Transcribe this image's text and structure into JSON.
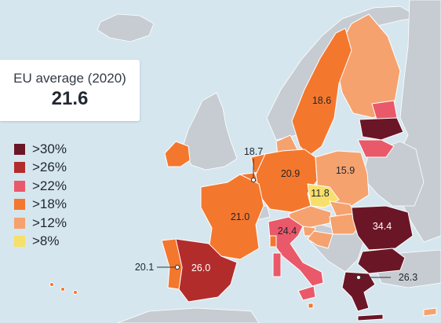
{
  "summary": {
    "label": "EU average (2020)",
    "value": "21.6"
  },
  "legend": [
    {
      "label": ">30%",
      "color": "#6b1626"
    },
    {
      "label": ">26%",
      "color": "#b32c2c"
    },
    {
      "label": ">22%",
      "color": "#e9596a"
    },
    {
      "label": ">18%",
      "color": "#f4772e"
    },
    {
      "label": ">12%",
      "color": "#f5a26f"
    },
    {
      "label": ">8%",
      "color": "#f7df6b"
    }
  ],
  "chart_data": {
    "type": "choropleth",
    "units": "%",
    "regions": [
      {
        "region": "Sweden",
        "value": 18.6
      },
      {
        "region": "Belgium",
        "value": 18.7
      },
      {
        "region": "Germany",
        "value": 20.9
      },
      {
        "region": "Poland",
        "value": 15.9
      },
      {
        "region": "Czechia",
        "value": 11.8
      },
      {
        "region": "France",
        "value": 21.0
      },
      {
        "region": "Italy",
        "value": 24.4
      },
      {
        "region": "Romania",
        "value": 34.4
      },
      {
        "region": "Portugal",
        "value": 20.1
      },
      {
        "region": "Spain",
        "value": 26.0
      },
      {
        "region": "Greece",
        "value": 26.3
      }
    ]
  }
}
